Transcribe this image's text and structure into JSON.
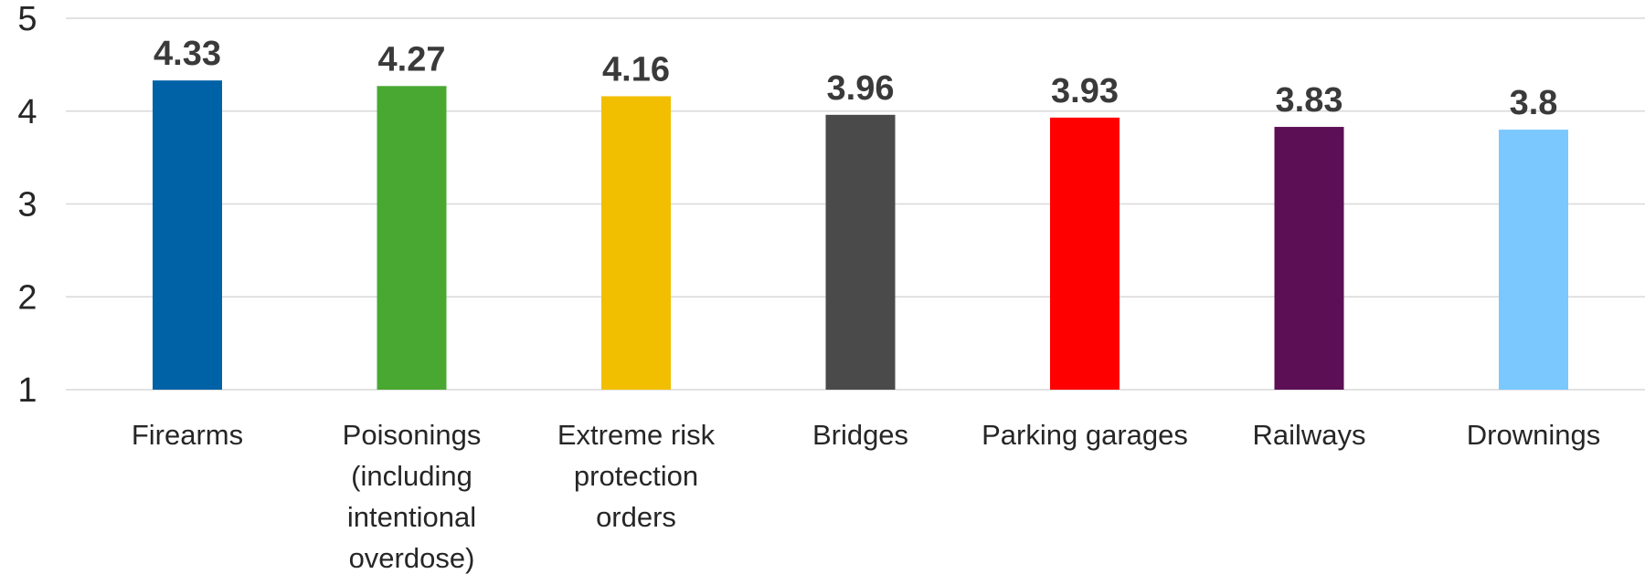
{
  "chart_data": {
    "type": "bar",
    "title": "",
    "xlabel": "",
    "ylabel": "",
    "ylim": [
      1,
      5
    ],
    "yticks": [
      1,
      2,
      3,
      4,
      5
    ],
    "grid": true,
    "legend": "none",
    "categories": [
      [
        "Firearms"
      ],
      [
        "Poisonings",
        "(including",
        "intentional",
        "overdose)"
      ],
      [
        "Extreme risk",
        "protection",
        "orders"
      ],
      [
        "Bridges"
      ],
      [
        "Parking garages"
      ],
      [
        "Railways"
      ],
      [
        "Drownings"
      ]
    ],
    "values": [
      4.33,
      4.27,
      4.16,
      3.96,
      3.93,
      3.83,
      3.8
    ],
    "data_labels": [
      "4.33",
      "4.27",
      "4.16",
      "3.96",
      "3.93",
      "3.83",
      "3.8"
    ],
    "colors": [
      "#0062A6",
      "#49A832",
      "#F2BE00",
      "#4A4A4A",
      "#FF0000",
      "#5C0F55",
      "#7BC8FF"
    ]
  }
}
